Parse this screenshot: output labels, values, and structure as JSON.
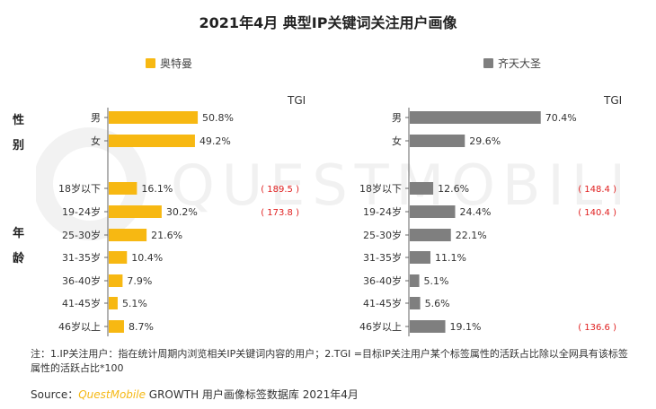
{
  "title": "2021年4月 典型IP关键词关注用户画像",
  "watermark_text": "QUESTMOBILE",
  "group_labels": {
    "gender": [
      "性",
      "别"
    ],
    "age": [
      "年",
      "龄"
    ]
  },
  "tgi_header": "TGI",
  "colors": {
    "left": "#f7b812",
    "right": "#7f7f7f",
    "tgi": "#e02020"
  },
  "chart_data": [
    {
      "type": "bar",
      "orientation": "horizontal",
      "legend": "奥特曼",
      "categories": [
        "男",
        "女",
        "18岁以下",
        "19-24岁",
        "25-30岁",
        "31-35岁",
        "36-40岁",
        "41-45岁",
        "46岁以上"
      ],
      "values": [
        50.8,
        49.2,
        16.1,
        30.2,
        21.6,
        10.4,
        7.9,
        5.1,
        8.7
      ],
      "value_labels": [
        "50.8%",
        "49.2%",
        "16.1%",
        "30.2%",
        "21.6%",
        "10.4%",
        "7.9%",
        "5.1%",
        "8.7%"
      ],
      "tgi_labels": [
        "",
        "",
        "( 189.5 )",
        "( 173.8 )",
        "",
        "",
        "",
        "",
        ""
      ],
      "color": "#f7b812"
    },
    {
      "type": "bar",
      "orientation": "horizontal",
      "legend": "齐天大圣",
      "categories": [
        "男",
        "女",
        "18岁以下",
        "19-24岁",
        "25-30岁",
        "31-35岁",
        "36-40岁",
        "41-45岁",
        "46岁以上"
      ],
      "values": [
        70.4,
        29.6,
        12.6,
        24.4,
        22.1,
        11.1,
        5.1,
        5.6,
        19.1
      ],
      "value_labels": [
        "70.4%",
        "29.6%",
        "12.6%",
        "24.4%",
        "22.1%",
        "11.1%",
        "5.1%",
        "5.6%",
        "19.1%"
      ],
      "tgi_labels": [
        "",
        "",
        "( 148.4 )",
        "( 140.4 )",
        "",
        "",
        "",
        "",
        "( 136.6 )"
      ],
      "color": "#7f7f7f"
    }
  ],
  "note": "注：1.IP关注用户：指在统计周期内浏览相关IP关键词内容的用户；2.TGI =目标IP关注用户某个标签属性的活跃占比除以全网具有该标签属性的活跃占比*100",
  "source_prefix": "Source：",
  "source_brand": "QuestMobile",
  "source_rest": " GROWTH 用户画像标签数据库 2021年4月"
}
